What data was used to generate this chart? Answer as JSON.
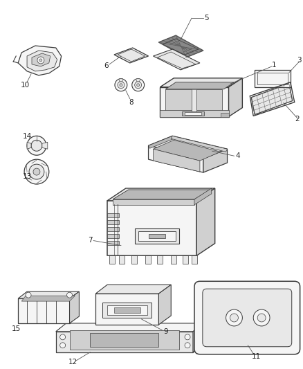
{
  "bg_color": "#ffffff",
  "lc": "#3a3a3a",
  "lc_light": "#888888",
  "fc_light": "#f5f5f5",
  "fc_mid": "#e8e8e8",
  "fc_dark": "#d0d0d0",
  "fc_darker": "#b8b8b8",
  "fc_black": "#444444",
  "figsize": [
    4.38,
    5.33
  ],
  "dpi": 100
}
